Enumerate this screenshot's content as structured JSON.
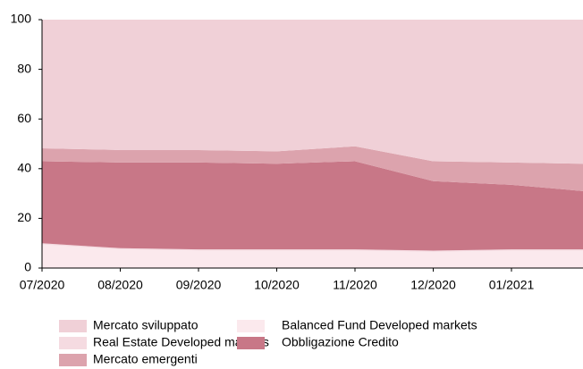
{
  "chart_data": {
    "type": "stacked_area",
    "categories": [
      "07/2020",
      "08/2020",
      "09/2020",
      "10/2020",
      "11/2020",
      "12/2020",
      "01/2021",
      null
    ],
    "series": [
      {
        "name": "Balanced Fund Developed markets",
        "color": "#fbe9ed",
        "values": [
          9.5,
          7.5,
          7,
          7,
          7,
          6.5,
          7,
          7
        ]
      },
      {
        "name": "Real Estate Developed markets",
        "color": "#f5dbe1",
        "values": [
          0.5,
          0.5,
          0.5,
          0.5,
          0.5,
          0.5,
          0.5,
          0.5
        ]
      },
      {
        "name": "Obbligazione Credito",
        "color": "#c87787",
        "values": [
          33,
          34.5,
          35,
          34.5,
          35.5,
          28,
          26,
          23.5
        ]
      },
      {
        "name": "Mercato emergenti",
        "color": "#dca3ad",
        "values": [
          5.2,
          5,
          5,
          5,
          6,
          8,
          9,
          11
        ]
      },
      {
        "name": "Mercato sviluppato",
        "color": "#f0d0d7",
        "values": [
          51.8,
          52.5,
          52.5,
          53,
          51,
          57,
          57.5,
          58
        ]
      }
    ],
    "legend_order": [
      4,
      1,
      3,
      0,
      2
    ],
    "ylim": [
      0,
      100
    ],
    "yticks": [
      0,
      20,
      40,
      60,
      80,
      100
    ],
    "grid": false
  }
}
